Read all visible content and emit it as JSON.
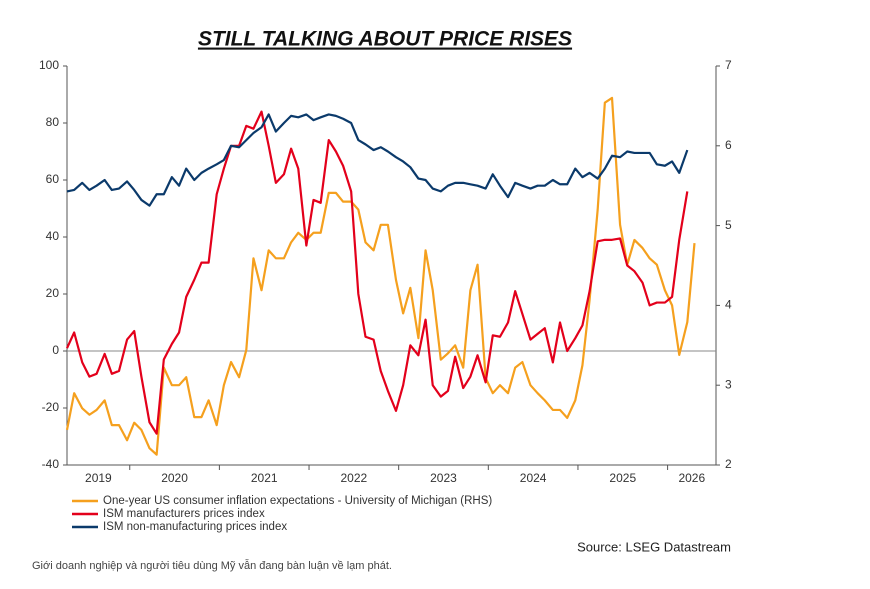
{
  "chart_data": {
    "type": "line",
    "title": "STILL TALKING ABOUT PRICE RISES",
    "source": "Source: LSEG Datastream",
    "x": [
      2019.3,
      2019.38,
      2019.47,
      2019.55,
      2019.63,
      2019.72,
      2019.8,
      2019.88,
      2019.97,
      2020.05,
      2020.13,
      2020.22,
      2020.3,
      2020.38,
      2020.47,
      2020.55,
      2020.63,
      2020.72,
      2020.8,
      2020.88,
      2020.97,
      2021.05,
      2021.13,
      2021.22,
      2021.3,
      2021.38,
      2021.47,
      2021.55,
      2021.63,
      2021.72,
      2021.8,
      2021.88,
      2021.97,
      2022.05,
      2022.13,
      2022.22,
      2022.3,
      2022.38,
      2022.47,
      2022.55,
      2022.63,
      2022.72,
      2022.8,
      2022.88,
      2022.97,
      2023.05,
      2023.13,
      2023.22,
      2023.3,
      2023.38,
      2023.47,
      2023.55,
      2023.63,
      2023.72,
      2023.8,
      2023.88,
      2023.97,
      2024.05,
      2024.13,
      2024.22,
      2024.3,
      2024.38,
      2024.47,
      2024.55,
      2024.63,
      2024.72,
      2024.8,
      2024.88,
      2024.97,
      2025.05,
      2025.13,
      2025.22,
      2025.3,
      2025.38,
      2025.47,
      2025.55,
      2025.63,
      2025.72,
      2025.8,
      2025.88,
      2025.97,
      2026.05,
      2026.13,
      2026.22,
      2026.3
    ],
    "xlim": [
      2019.3,
      2026.54
    ],
    "xticks": [
      2019,
      2020,
      2021,
      2022,
      2023,
      2024,
      2025,
      2026
    ],
    "ylim": [
      -40,
      100
    ],
    "yticks": [
      -40,
      -20,
      0,
      20,
      40,
      60,
      80,
      100
    ],
    "y2lim": [
      2,
      7
    ],
    "y2ticks": [
      2,
      3,
      4,
      5,
      6,
      7
    ],
    "series": [
      {
        "name": "One-year US consumer inflation expectations - University of Michigan (RHS)",
        "color": "#f5a01e",
        "axis": "y2",
        "values": [
          2.44,
          2.9,
          2.71,
          2.63,
          2.69,
          2.81,
          2.5,
          2.5,
          2.31,
          2.53,
          2.44,
          2.21,
          2.13,
          3.22,
          3.0,
          3.0,
          3.1,
          2.6,
          2.6,
          2.81,
          2.5,
          3.0,
          3.29,
          3.1,
          3.44,
          4.59,
          4.19,
          4.69,
          4.59,
          4.59,
          4.79,
          4.91,
          4.82,
          4.91,
          4.91,
          5.41,
          5.41,
          5.3,
          5.3,
          5.2,
          4.79,
          4.69,
          5.01,
          5.01,
          4.32,
          3.9,
          4.22,
          3.59,
          4.69,
          4.19,
          3.32,
          3.4,
          3.5,
          3.22,
          4.19,
          4.51,
          3.09,
          2.9,
          3.0,
          2.9,
          3.22,
          3.29,
          3.0,
          2.9,
          2.81,
          2.69,
          2.69,
          2.59,
          2.81,
          3.25,
          4.07,
          5.2,
          6.54,
          6.6,
          5.01,
          4.51,
          4.82,
          4.72,
          4.59,
          4.51,
          4.19,
          4.0,
          3.38,
          3.79,
          4.78
        ]
      },
      {
        "name": "ISM manufacturers prices index",
        "color": "#e3001b",
        "values": [
          1,
          6.5,
          -4,
          -9,
          -8,
          -1,
          -8,
          -7,
          4,
          7,
          -9,
          -25,
          -29,
          -3,
          2.5,
          6.5,
          19,
          25,
          31,
          31,
          55,
          64,
          72,
          72,
          79,
          78,
          84,
          72,
          59,
          62,
          71,
          64,
          37,
          53,
          52,
          74,
          70,
          65,
          56,
          20,
          5,
          4,
          -7,
          -14,
          -21,
          -12,
          2,
          -1.5,
          11,
          -12,
          -16,
          -14,
          -2,
          -13,
          -9,
          -1.5,
          -11,
          5.5,
          5,
          10,
          21,
          13,
          4,
          6,
          8,
          -4,
          10,
          0,
          4.5,
          9,
          21,
          38.5,
          39,
          39,
          39.5,
          30,
          28,
          24,
          16,
          17,
          17,
          19,
          39,
          56,
          null
        ]
      },
      {
        "name": "ISM non-manufacturing prices index",
        "color": "#0b3a6b",
        "values": [
          56,
          56.5,
          59,
          56.5,
          58,
          60,
          56.5,
          57,
          59.5,
          56.5,
          53,
          51,
          55,
          55,
          61,
          58,
          64,
          60,
          62.5,
          64,
          65.5,
          67,
          72,
          71.5,
          74,
          76.5,
          78.5,
          83,
          77,
          80,
          82.5,
          82,
          83,
          81,
          82,
          83,
          82.5,
          81.5,
          80,
          74,
          72.5,
          70.5,
          71.5,
          70,
          68,
          66.5,
          64.5,
          60.5,
          60,
          57,
          56,
          58,
          59,
          59,
          58.5,
          58,
          57,
          62,
          58,
          54,
          59,
          58,
          57,
          58,
          58,
          60,
          58.5,
          58.5,
          64,
          61,
          62.5,
          60.5,
          64,
          68.5,
          68,
          70,
          69.5,
          69.5,
          69.5,
          65.5,
          65,
          66.5,
          62.5,
          70.5,
          null
        ]
      }
    ]
  },
  "caption": "Giới doanh nghiệp và người tiêu dùng Mỹ vẫn đang bàn luận về lạm phát."
}
